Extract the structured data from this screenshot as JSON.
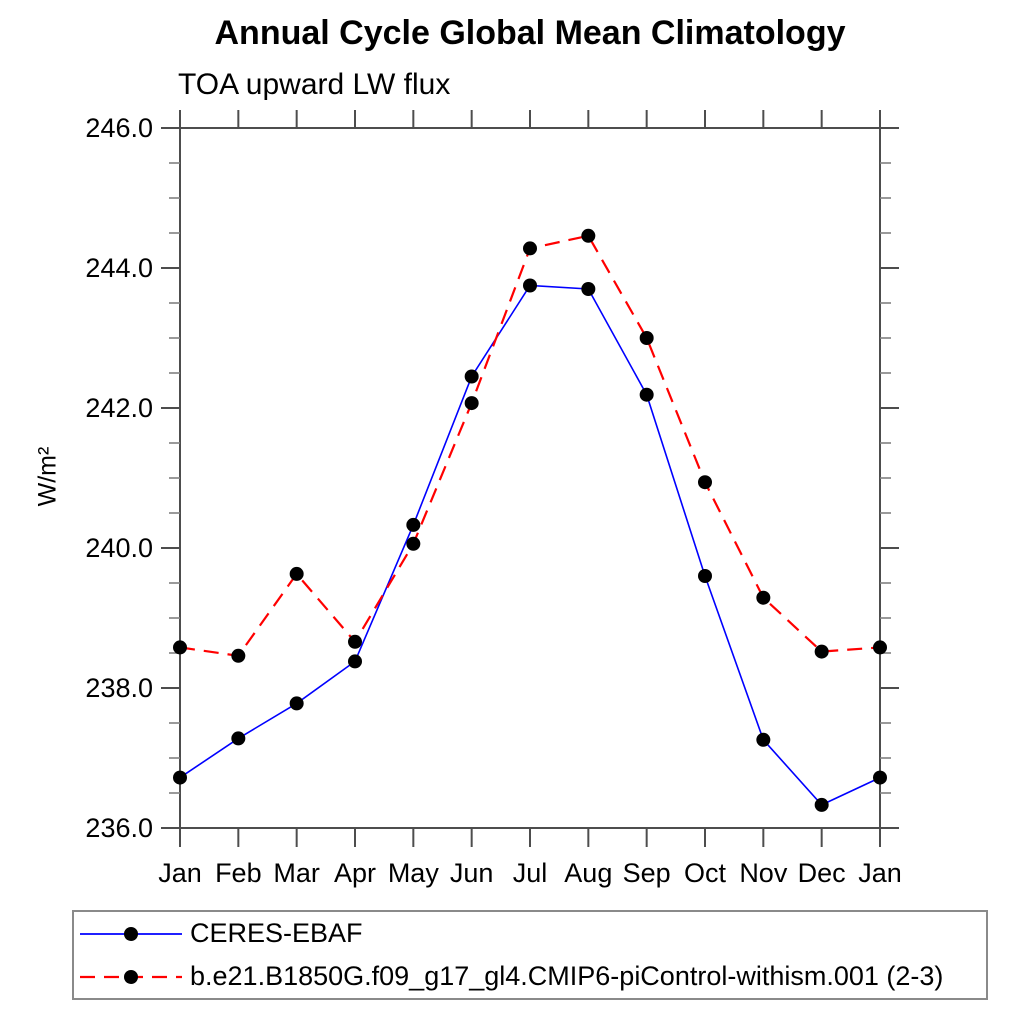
{
  "chart_data": {
    "type": "line",
    "title": "Annual Cycle Global Mean Climatology",
    "subtitle": "TOA upward LW flux",
    "ylabel": "W/m²",
    "xlabel": "",
    "categories": [
      "Jan",
      "Feb",
      "Mar",
      "Apr",
      "May",
      "Jun",
      "Jul",
      "Aug",
      "Sep",
      "Oct",
      "Nov",
      "Dec",
      "Jan"
    ],
    "series": [
      {
        "name": "CERES-EBAF",
        "color": "#0000ff",
        "line_style": "solid",
        "dash": "",
        "line_width": 1.6,
        "marker": "circle",
        "marker_color": "#000000",
        "values": [
          236.72,
          237.28,
          237.78,
          238.38,
          240.33,
          242.45,
          243.75,
          243.7,
          242.19,
          239.6,
          237.26,
          236.33,
          236.72
        ]
      },
      {
        "name": "b.e21.B1850G.f09_g17_gl4.CMIP6-piControl-withism.001 (2-3)",
        "color": "#ff0000",
        "line_style": "dashed",
        "dash": "15 9",
        "line_width": 2.2,
        "marker": "circle",
        "marker_color": "#000000",
        "values": [
          238.58,
          238.46,
          239.63,
          238.66,
          240.06,
          242.07,
          244.28,
          244.46,
          243.0,
          240.94,
          239.29,
          238.52,
          238.58
        ]
      }
    ],
    "ylim": [
      236,
      246
    ],
    "ytick_step_major": 2,
    "ytick_step_minor": 0.5,
    "ytick_labels": [
      "236.0",
      "238.0",
      "240.0",
      "242.0",
      "244.0",
      "246.0"
    ],
    "grid": false,
    "frame": "box",
    "tick_direction": "out",
    "legend_position": "bottom-box",
    "axis_color": "#4d4d4d",
    "minor_tick_color": "#808080",
    "text_color": "#000000"
  }
}
